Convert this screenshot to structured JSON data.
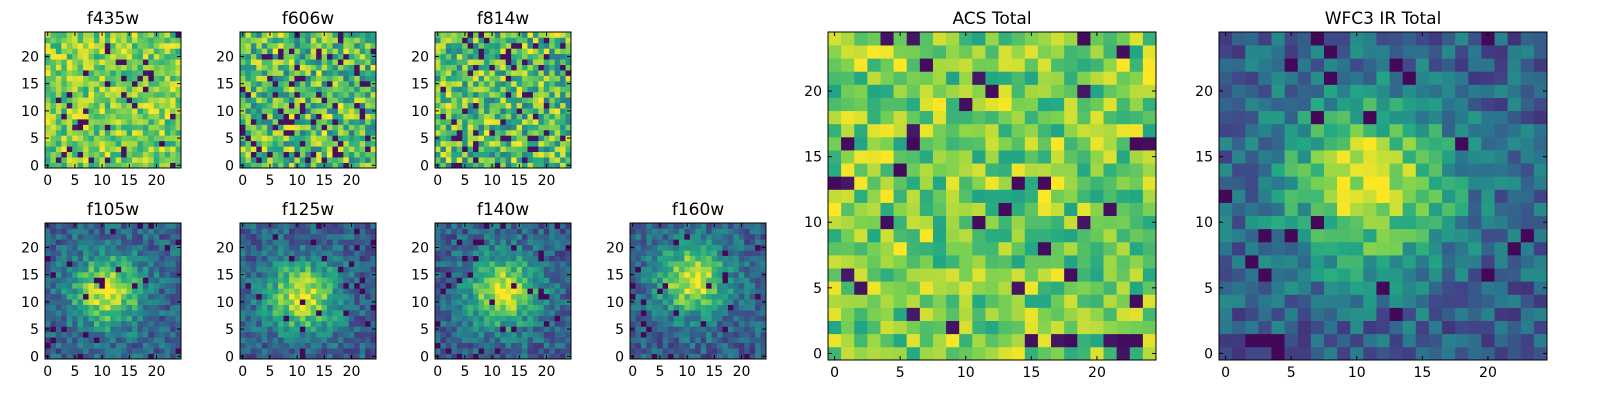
{
  "colormap": {
    "name": "viridis",
    "stops": [
      "#440154",
      "#414487",
      "#2a788e",
      "#22a884",
      "#7ad151",
      "#fde725"
    ]
  },
  "chart_data": [
    {
      "type": "heatmap",
      "title": "f435w",
      "grid_size": 25,
      "xticks": [
        "0",
        "5",
        "10",
        "15",
        "20"
      ],
      "yticks": [
        "0",
        "5",
        "10",
        "15",
        "20"
      ],
      "xlim": [
        -0.5,
        24.5
      ],
      "ylim": [
        -0.5,
        24.5
      ],
      "value_range": [
        0,
        1
      ],
      "pattern": "noisy-bright",
      "seed": 11
    },
    {
      "type": "heatmap",
      "title": "f606w",
      "grid_size": 25,
      "xticks": [
        "0",
        "5",
        "10",
        "15",
        "20"
      ],
      "yticks": [
        "0",
        "5",
        "10",
        "15",
        "20"
      ],
      "xlim": [
        -0.5,
        24.5
      ],
      "ylim": [
        -0.5,
        24.5
      ],
      "value_range": [
        0,
        1
      ],
      "pattern": "noisy-mixed",
      "seed": 23
    },
    {
      "type": "heatmap",
      "title": "f814w",
      "grid_size": 25,
      "xticks": [
        "0",
        "5",
        "10",
        "15",
        "20"
      ],
      "yticks": [
        "0",
        "5",
        "10",
        "15",
        "20"
      ],
      "xlim": [
        -0.5,
        24.5
      ],
      "ylim": [
        -0.5,
        24.5
      ],
      "value_range": [
        0,
        1
      ],
      "pattern": "noisy-mixed",
      "seed": 37
    },
    {
      "type": "heatmap",
      "title": "f105w",
      "grid_size": 25,
      "xticks": [
        "0",
        "5",
        "10",
        "15",
        "20"
      ],
      "yticks": [
        "0",
        "5",
        "10",
        "15",
        "20"
      ],
      "xlim": [
        -0.5,
        24.5
      ],
      "ylim": [
        -0.5,
        24.5
      ],
      "value_range": [
        0,
        1
      ],
      "pattern": "central-source",
      "source_center": [
        11,
        12
      ],
      "seed": 41
    },
    {
      "type": "heatmap",
      "title": "f125w",
      "grid_size": 25,
      "xticks": [
        "0",
        "5",
        "10",
        "15",
        "20"
      ],
      "yticks": [
        "0",
        "5",
        "10",
        "15",
        "20"
      ],
      "xlim": [
        -0.5,
        24.5
      ],
      "ylim": [
        -0.5,
        24.5
      ],
      "value_range": [
        0,
        1
      ],
      "pattern": "central-source",
      "source_center": [
        11,
        11
      ],
      "seed": 53
    },
    {
      "type": "heatmap",
      "title": "f140w",
      "grid_size": 25,
      "xticks": [
        "0",
        "5",
        "10",
        "15",
        "20"
      ],
      "yticks": [
        "0",
        "5",
        "10",
        "15",
        "20"
      ],
      "xlim": [
        -0.5,
        24.5
      ],
      "ylim": [
        -0.5,
        24.5
      ],
      "value_range": [
        0,
        1
      ],
      "pattern": "central-source",
      "source_center": [
        12,
        12
      ],
      "seed": 67
    },
    {
      "type": "heatmap",
      "title": "f160w",
      "grid_size": 25,
      "xticks": [
        "0",
        "5",
        "10",
        "15",
        "20"
      ],
      "yticks": [
        "0",
        "5",
        "10",
        "15",
        "20"
      ],
      "xlim": [
        -0.5,
        24.5
      ],
      "ylim": [
        -0.5,
        24.5
      ],
      "value_range": [
        0,
        1
      ],
      "pattern": "central-source",
      "source_center": [
        11,
        14
      ],
      "seed": 79
    },
    {
      "type": "heatmap",
      "title": "ACS Total",
      "grid_size": 25,
      "xticks": [
        "0",
        "5",
        "10",
        "15",
        "20"
      ],
      "yticks": [
        "0",
        "5",
        "10",
        "15",
        "20"
      ],
      "xlim": [
        -0.5,
        24.5
      ],
      "ylim": [
        -0.5,
        24.5
      ],
      "value_range": [
        0,
        1
      ],
      "pattern": "noisy-bright",
      "seed": 83
    },
    {
      "type": "heatmap",
      "title": "WFC3 IR Total",
      "grid_size": 25,
      "xticks": [
        "0",
        "5",
        "10",
        "15",
        "20"
      ],
      "yticks": [
        "0",
        "5",
        "10",
        "15",
        "20"
      ],
      "xlim": [
        -0.5,
        24.5
      ],
      "ylim": [
        -0.5,
        24.5
      ],
      "value_range": [
        0,
        1
      ],
      "pattern": "central-source",
      "source_center": [
        11,
        13
      ],
      "seed": 97
    }
  ]
}
